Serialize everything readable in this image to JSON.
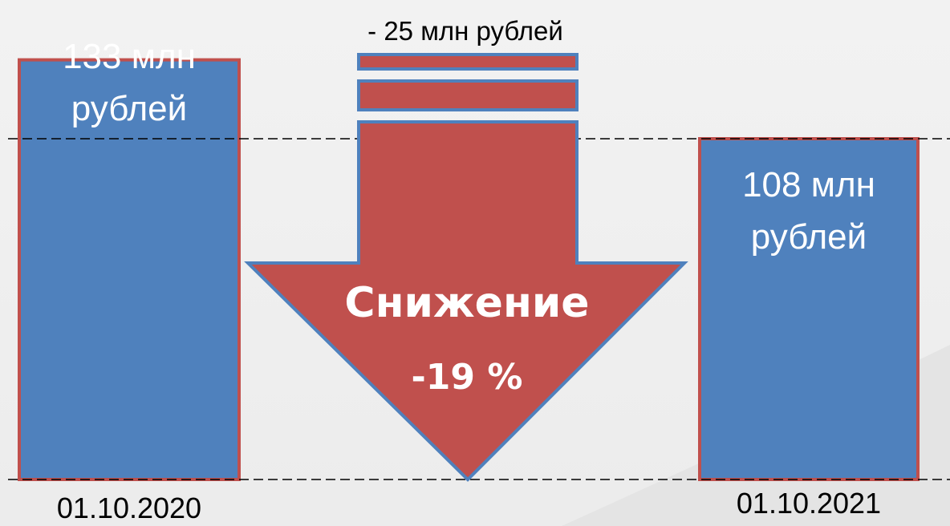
{
  "chart_data": {
    "type": "bar",
    "categories": [
      "01.10.2020",
      "01.10.2021"
    ],
    "values": [
      133,
      108
    ],
    "units": "млн рублей",
    "bar_labels": [
      [
        "133 млн",
        "рублей"
      ],
      [
        "108 млн",
        "рублей"
      ]
    ],
    "difference_label": "- 25 млн рублей",
    "arrow_label": "Снижение",
    "arrow_percent": "-19 %",
    "colors": {
      "bar_fill": "#4f81bd",
      "bar_border": "#c0504d",
      "arrow_fill": "#c0504d",
      "arrow_border": "#4f81bd",
      "reference_line": "#000000"
    },
    "grid": false,
    "reference_lines": "dashed, at baseline and at 01.10.2021 level"
  }
}
